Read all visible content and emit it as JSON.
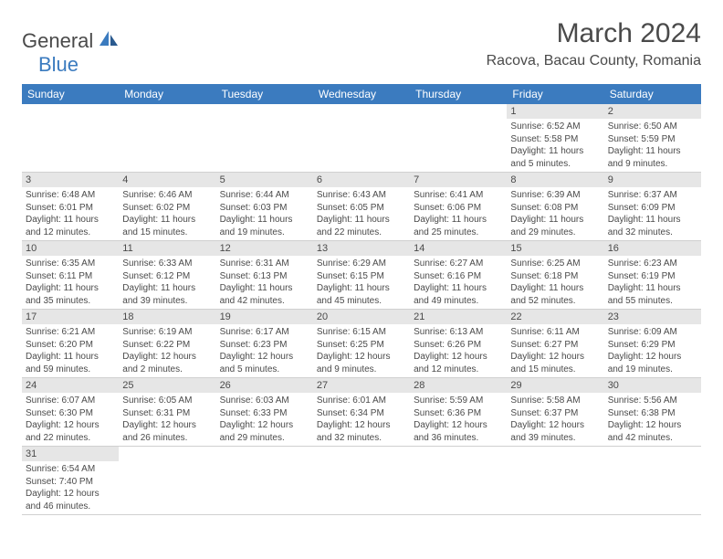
{
  "logo": {
    "text1": "General",
    "text2": "Blue"
  },
  "title": "March 2024",
  "location": "Racova, Bacau County, Romania",
  "columns": [
    "Sunday",
    "Monday",
    "Tuesday",
    "Wednesday",
    "Thursday",
    "Friday",
    "Saturday"
  ],
  "colors": {
    "header_bg": "#3b7bbf",
    "header_text": "#ffffff",
    "daynum_bg": "#e6e6e6",
    "body_text": "#4a4a4a",
    "border": "#d0d0d0"
  },
  "weeks": [
    [
      null,
      null,
      null,
      null,
      null,
      {
        "n": "1",
        "sr": "Sunrise: 6:52 AM",
        "ss": "Sunset: 5:58 PM",
        "d1": "Daylight: 11 hours",
        "d2": "and 5 minutes."
      },
      {
        "n": "2",
        "sr": "Sunrise: 6:50 AM",
        "ss": "Sunset: 5:59 PM",
        "d1": "Daylight: 11 hours",
        "d2": "and 9 minutes."
      }
    ],
    [
      {
        "n": "3",
        "sr": "Sunrise: 6:48 AM",
        "ss": "Sunset: 6:01 PM",
        "d1": "Daylight: 11 hours",
        "d2": "and 12 minutes."
      },
      {
        "n": "4",
        "sr": "Sunrise: 6:46 AM",
        "ss": "Sunset: 6:02 PM",
        "d1": "Daylight: 11 hours",
        "d2": "and 15 minutes."
      },
      {
        "n": "5",
        "sr": "Sunrise: 6:44 AM",
        "ss": "Sunset: 6:03 PM",
        "d1": "Daylight: 11 hours",
        "d2": "and 19 minutes."
      },
      {
        "n": "6",
        "sr": "Sunrise: 6:43 AM",
        "ss": "Sunset: 6:05 PM",
        "d1": "Daylight: 11 hours",
        "d2": "and 22 minutes."
      },
      {
        "n": "7",
        "sr": "Sunrise: 6:41 AM",
        "ss": "Sunset: 6:06 PM",
        "d1": "Daylight: 11 hours",
        "d2": "and 25 minutes."
      },
      {
        "n": "8",
        "sr": "Sunrise: 6:39 AM",
        "ss": "Sunset: 6:08 PM",
        "d1": "Daylight: 11 hours",
        "d2": "and 29 minutes."
      },
      {
        "n": "9",
        "sr": "Sunrise: 6:37 AM",
        "ss": "Sunset: 6:09 PM",
        "d1": "Daylight: 11 hours",
        "d2": "and 32 minutes."
      }
    ],
    [
      {
        "n": "10",
        "sr": "Sunrise: 6:35 AM",
        "ss": "Sunset: 6:11 PM",
        "d1": "Daylight: 11 hours",
        "d2": "and 35 minutes."
      },
      {
        "n": "11",
        "sr": "Sunrise: 6:33 AM",
        "ss": "Sunset: 6:12 PM",
        "d1": "Daylight: 11 hours",
        "d2": "and 39 minutes."
      },
      {
        "n": "12",
        "sr": "Sunrise: 6:31 AM",
        "ss": "Sunset: 6:13 PM",
        "d1": "Daylight: 11 hours",
        "d2": "and 42 minutes."
      },
      {
        "n": "13",
        "sr": "Sunrise: 6:29 AM",
        "ss": "Sunset: 6:15 PM",
        "d1": "Daylight: 11 hours",
        "d2": "and 45 minutes."
      },
      {
        "n": "14",
        "sr": "Sunrise: 6:27 AM",
        "ss": "Sunset: 6:16 PM",
        "d1": "Daylight: 11 hours",
        "d2": "and 49 minutes."
      },
      {
        "n": "15",
        "sr": "Sunrise: 6:25 AM",
        "ss": "Sunset: 6:18 PM",
        "d1": "Daylight: 11 hours",
        "d2": "and 52 minutes."
      },
      {
        "n": "16",
        "sr": "Sunrise: 6:23 AM",
        "ss": "Sunset: 6:19 PM",
        "d1": "Daylight: 11 hours",
        "d2": "and 55 minutes."
      }
    ],
    [
      {
        "n": "17",
        "sr": "Sunrise: 6:21 AM",
        "ss": "Sunset: 6:20 PM",
        "d1": "Daylight: 11 hours",
        "d2": "and 59 minutes."
      },
      {
        "n": "18",
        "sr": "Sunrise: 6:19 AM",
        "ss": "Sunset: 6:22 PM",
        "d1": "Daylight: 12 hours",
        "d2": "and 2 minutes."
      },
      {
        "n": "19",
        "sr": "Sunrise: 6:17 AM",
        "ss": "Sunset: 6:23 PM",
        "d1": "Daylight: 12 hours",
        "d2": "and 5 minutes."
      },
      {
        "n": "20",
        "sr": "Sunrise: 6:15 AM",
        "ss": "Sunset: 6:25 PM",
        "d1": "Daylight: 12 hours",
        "d2": "and 9 minutes."
      },
      {
        "n": "21",
        "sr": "Sunrise: 6:13 AM",
        "ss": "Sunset: 6:26 PM",
        "d1": "Daylight: 12 hours",
        "d2": "and 12 minutes."
      },
      {
        "n": "22",
        "sr": "Sunrise: 6:11 AM",
        "ss": "Sunset: 6:27 PM",
        "d1": "Daylight: 12 hours",
        "d2": "and 15 minutes."
      },
      {
        "n": "23",
        "sr": "Sunrise: 6:09 AM",
        "ss": "Sunset: 6:29 PM",
        "d1": "Daylight: 12 hours",
        "d2": "and 19 minutes."
      }
    ],
    [
      {
        "n": "24",
        "sr": "Sunrise: 6:07 AM",
        "ss": "Sunset: 6:30 PM",
        "d1": "Daylight: 12 hours",
        "d2": "and 22 minutes."
      },
      {
        "n": "25",
        "sr": "Sunrise: 6:05 AM",
        "ss": "Sunset: 6:31 PM",
        "d1": "Daylight: 12 hours",
        "d2": "and 26 minutes."
      },
      {
        "n": "26",
        "sr": "Sunrise: 6:03 AM",
        "ss": "Sunset: 6:33 PM",
        "d1": "Daylight: 12 hours",
        "d2": "and 29 minutes."
      },
      {
        "n": "27",
        "sr": "Sunrise: 6:01 AM",
        "ss": "Sunset: 6:34 PM",
        "d1": "Daylight: 12 hours",
        "d2": "and 32 minutes."
      },
      {
        "n": "28",
        "sr": "Sunrise: 5:59 AM",
        "ss": "Sunset: 6:36 PM",
        "d1": "Daylight: 12 hours",
        "d2": "and 36 minutes."
      },
      {
        "n": "29",
        "sr": "Sunrise: 5:58 AM",
        "ss": "Sunset: 6:37 PM",
        "d1": "Daylight: 12 hours",
        "d2": "and 39 minutes."
      },
      {
        "n": "30",
        "sr": "Sunrise: 5:56 AM",
        "ss": "Sunset: 6:38 PM",
        "d1": "Daylight: 12 hours",
        "d2": "and 42 minutes."
      }
    ],
    [
      {
        "n": "31",
        "sr": "Sunrise: 6:54 AM",
        "ss": "Sunset: 7:40 PM",
        "d1": "Daylight: 12 hours",
        "d2": "and 46 minutes."
      },
      null,
      null,
      null,
      null,
      null,
      null
    ]
  ]
}
